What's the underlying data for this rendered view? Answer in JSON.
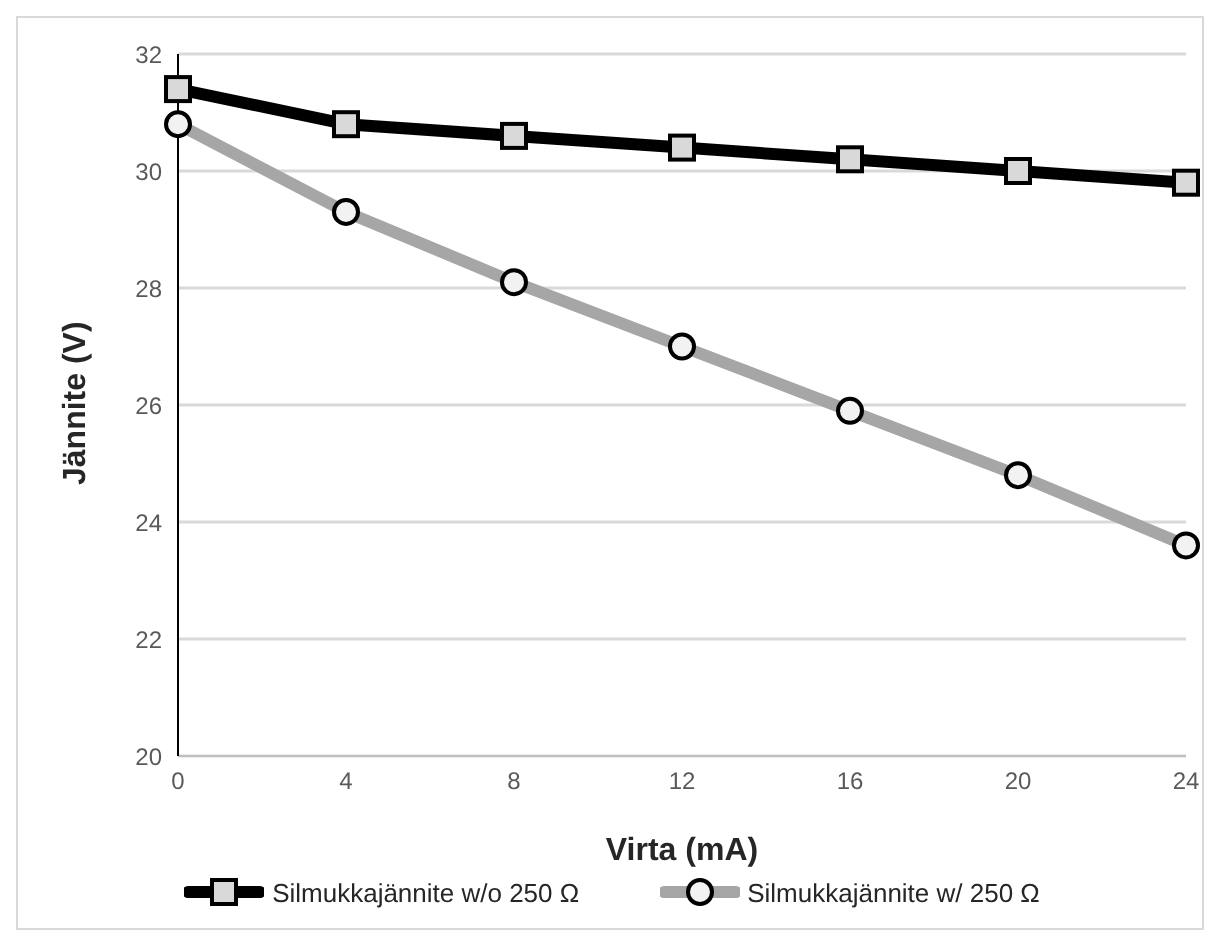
{
  "chart_data": {
    "type": "line",
    "xlabel": "Virta (mA)",
    "ylabel": "Jännite (V)",
    "categories": [
      "0",
      "4",
      "8",
      "12",
      "16",
      "20",
      "24"
    ],
    "series": [
      {
        "name": "Silmukkajännite w/o 250 Ω",
        "color": "#000000",
        "marker": "square",
        "values": [
          31.4,
          30.8,
          30.6,
          30.4,
          30.2,
          30.0,
          29.8
        ]
      },
      {
        "name": "Silmukkajännite w/ 250 Ω",
        "color": "#a6a6a6",
        "marker": "circle",
        "values": [
          30.8,
          29.3,
          28.1,
          27.0,
          25.9,
          24.8,
          23.6
        ]
      }
    ],
    "ylim": [
      20,
      32
    ],
    "yticks": [
      20,
      22,
      24,
      26,
      28,
      30,
      32
    ],
    "grid": "y",
    "legend": "bottom",
    "line_style": "solid"
  }
}
